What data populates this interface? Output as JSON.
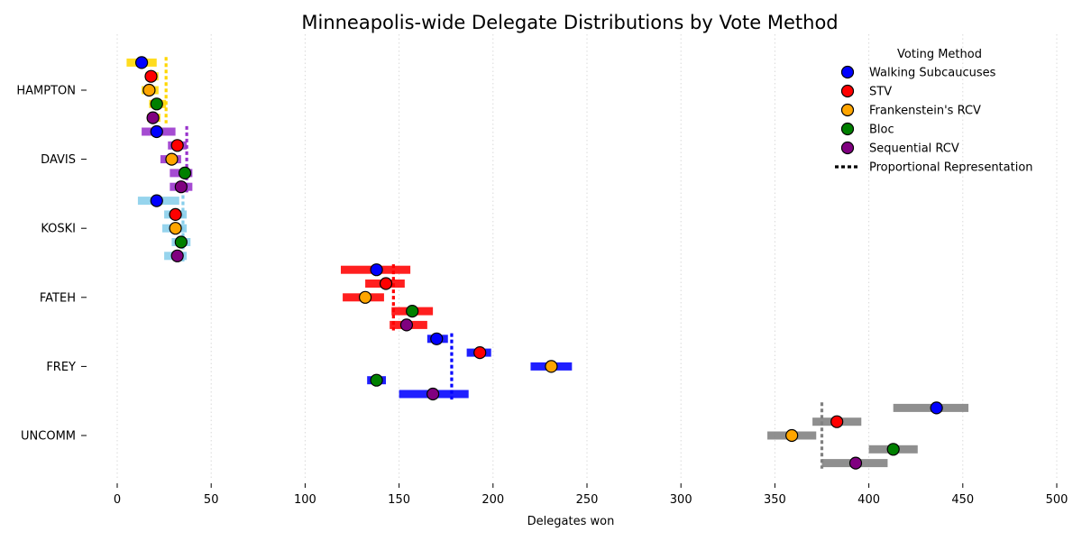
{
  "chart_data": {
    "type": "scatter",
    "title": "Minneapolis-wide Delegate Distributions by Vote Method",
    "xlabel": "Delegates won",
    "ylabel": "",
    "xlim": [
      0,
      500
    ],
    "x_ticks": [
      0,
      50,
      100,
      150,
      200,
      250,
      300,
      350,
      400,
      450,
      500
    ],
    "grid": "vertical dotted",
    "legend": {
      "title": "Voting Method",
      "placement": "top-right",
      "proportional_label": "Proportional Representation"
    },
    "methods": [
      {
        "name": "Walking Subcaucuses",
        "color": "#0000ff"
      },
      {
        "name": "STV",
        "color": "#ff0000"
      },
      {
        "name": "Frankenstein's RCV",
        "color": "#ffa500"
      },
      {
        "name": "Bloc",
        "color": "#008000"
      },
      {
        "name": "Sequential RCV",
        "color": "#800080"
      }
    ],
    "candidates": [
      {
        "name": "HAMPTON",
        "color": "#ffd700",
        "proportional": 26,
        "values": [
          {
            "method": "Walking Subcaucuses",
            "mean": 13,
            "low": 5,
            "high": 21
          },
          {
            "method": "STV",
            "mean": 18,
            "low": 15,
            "high": 22
          },
          {
            "method": "Frankenstein's RCV",
            "mean": 17,
            "low": 13,
            "high": 22
          },
          {
            "method": "Bloc",
            "mean": 21,
            "low": 17,
            "high": 26
          },
          {
            "method": "Sequential RCV",
            "mean": 19,
            "low": 16,
            "high": 23
          }
        ]
      },
      {
        "name": "DAVIS",
        "color": "#9932cc",
        "proportional": 37,
        "values": [
          {
            "method": "Walking Subcaucuses",
            "mean": 21,
            "low": 13,
            "high": 31
          },
          {
            "method": "STV",
            "mean": 32,
            "low": 27,
            "high": 37
          },
          {
            "method": "Frankenstein's RCV",
            "mean": 29,
            "low": 23,
            "high": 34
          },
          {
            "method": "Bloc",
            "mean": 36,
            "low": 28,
            "high": 40
          },
          {
            "method": "Sequential RCV",
            "mean": 34,
            "low": 28,
            "high": 40
          }
        ]
      },
      {
        "name": "KOSKI",
        "color": "#87ceeb",
        "proportional": 35,
        "values": [
          {
            "method": "Walking Subcaucuses",
            "mean": 21,
            "low": 11,
            "high": 33
          },
          {
            "method": "STV",
            "mean": 31,
            "low": 25,
            "high": 37
          },
          {
            "method": "Frankenstein's RCV",
            "mean": 31,
            "low": 24,
            "high": 37
          },
          {
            "method": "Bloc",
            "mean": 34,
            "low": 29,
            "high": 39
          },
          {
            "method": "Sequential RCV",
            "mean": 32,
            "low": 25,
            "high": 37
          }
        ]
      },
      {
        "name": "FATEH",
        "color": "#ff0000",
        "proportional": 147,
        "values": [
          {
            "method": "Walking Subcaucuses",
            "mean": 138,
            "low": 119,
            "high": 156
          },
          {
            "method": "STV",
            "mean": 143,
            "low": 132,
            "high": 153
          },
          {
            "method": "Frankenstein's RCV",
            "mean": 132,
            "low": 120,
            "high": 142
          },
          {
            "method": "Bloc",
            "mean": 157,
            "low": 146,
            "high": 168
          },
          {
            "method": "Sequential RCV",
            "mean": 154,
            "low": 145,
            "high": 165
          }
        ]
      },
      {
        "name": "FREY",
        "color": "#0000ff",
        "proportional": 178,
        "values": [
          {
            "method": "Walking Subcaucuses",
            "mean": 170,
            "low": 165,
            "high": 176
          },
          {
            "method": "STV",
            "mean": 193,
            "low": 186,
            "high": 199
          },
          {
            "method": "Frankenstein's RCV",
            "mean": 231,
            "low": 220,
            "high": 242
          },
          {
            "method": "Bloc",
            "mean": 138,
            "low": 133,
            "high": 143
          },
          {
            "method": "Sequential RCV",
            "mean": 168,
            "low": 150,
            "high": 187
          }
        ]
      },
      {
        "name": "UNCOMM",
        "color": "#808080",
        "proportional": 375,
        "values": [
          {
            "method": "Walking Subcaucuses",
            "mean": 436,
            "low": 413,
            "high": 453
          },
          {
            "method": "STV",
            "mean": 383,
            "low": 370,
            "high": 396
          },
          {
            "method": "Frankenstein's RCV",
            "mean": 359,
            "low": 346,
            "high": 372
          },
          {
            "method": "Bloc",
            "mean": 413,
            "low": 400,
            "high": 426
          },
          {
            "method": "Sequential RCV",
            "mean": 393,
            "low": 375,
            "high": 410
          }
        ]
      }
    ]
  }
}
